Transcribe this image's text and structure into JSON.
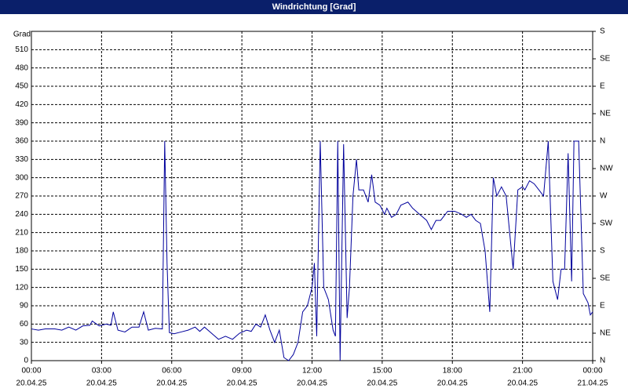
{
  "chart_data": {
    "type": "line",
    "title": "Windrichtung [Grad]",
    "y_label": "Grad",
    "x": [
      0,
      0.3,
      0.6,
      1.0,
      1.3,
      1.6,
      1.9,
      2.2,
      2.5,
      2.6,
      2.9,
      3.2,
      3.4,
      3.5,
      3.7,
      4.0,
      4.3,
      4.6,
      4.8,
      5.0,
      5.3,
      5.6,
      5.7,
      5.8,
      5.9,
      6.1,
      6.4,
      6.7,
      7.0,
      7.2,
      7.4,
      7.7,
      8.0,
      8.3,
      8.6,
      8.9,
      9.2,
      9.4,
      9.6,
      9.8,
      10.0,
      10.2,
      10.4,
      10.6,
      10.8,
      11.0,
      11.2,
      11.4,
      11.6,
      11.8,
      12.0,
      12.1,
      12.2,
      12.35,
      12.5,
      12.7,
      12.9,
      13.0,
      13.1,
      13.2,
      13.35,
      13.5,
      13.6,
      13.75,
      13.9,
      14.0,
      14.2,
      14.4,
      14.55,
      14.7,
      14.9,
      15.1,
      15.2,
      15.4,
      15.6,
      15.8,
      16.1,
      16.3,
      16.6,
      16.9,
      17.1,
      17.3,
      17.5,
      17.8,
      18.1,
      18.4,
      18.6,
      18.8,
      19.0,
      19.2,
      19.4,
      19.6,
      19.75,
      19.9,
      20.1,
      20.3,
      20.6,
      20.8,
      21.0,
      21.1,
      21.3,
      21.5,
      21.7,
      21.9,
      22.1,
      22.3,
      22.5,
      22.65,
      22.8,
      22.95,
      23.1,
      23.2,
      23.4,
      23.6,
      23.8,
      23.9,
      24.0
    ],
    "series": [
      {
        "name": "Windrichtung",
        "color": "#00009c",
        "values": [
          52,
          50,
          52,
          52,
          50,
          55,
          50,
          57,
          58,
          65,
          57,
          60,
          58,
          80,
          50,
          47,
          55,
          55,
          80,
          50,
          53,
          52,
          360,
          160,
          46,
          44,
          47,
          50,
          55,
          48,
          55,
          45,
          35,
          40,
          35,
          45,
          50,
          48,
          60,
          55,
          75,
          50,
          30,
          50,
          5,
          0,
          10,
          30,
          80,
          90,
          120,
          160,
          40,
          360,
          120,
          100,
          50,
          40,
          360,
          0,
          355,
          70,
          120,
          270,
          330,
          280,
          280,
          260,
          305,
          260,
          255,
          240,
          250,
          235,
          240,
          255,
          260,
          250,
          240,
          230,
          215,
          230,
          230,
          245,
          245,
          240,
          235,
          240,
          230,
          225,
          180,
          80,
          300,
          270,
          285,
          270,
          150,
          280,
          285,
          280,
          295,
          290,
          280,
          270,
          360,
          130,
          100,
          150,
          150,
          340,
          130,
          360,
          360,
          110,
          95,
          75,
          80
        ]
      }
    ],
    "xlim": [
      0,
      24
    ],
    "xticks": [
      {
        "value": 0,
        "label": "00:00",
        "date": "20.04.25"
      },
      {
        "value": 3,
        "label": "03:00",
        "date": "20.04.25"
      },
      {
        "value": 6,
        "label": "06:00",
        "date": "20.04.25"
      },
      {
        "value": 9,
        "label": "09:00",
        "date": "20.04.25"
      },
      {
        "value": 12,
        "label": "12:00",
        "date": "20.04.25"
      },
      {
        "value": 15,
        "label": "15:00",
        "date": "20.04.25"
      },
      {
        "value": 18,
        "label": "18:00",
        "date": "20.04.25"
      },
      {
        "value": 21,
        "label": "21:00",
        "date": "20.04.25"
      },
      {
        "value": 24,
        "label": "00:00",
        "date": "21.04.25"
      }
    ],
    "ylim": [
      0,
      540
    ],
    "yticks": [
      0,
      30,
      60,
      90,
      120,
      150,
      180,
      210,
      240,
      270,
      300,
      330,
      360,
      390,
      420,
      450,
      480,
      510
    ],
    "y2lim": [
      0,
      540
    ],
    "y2ticks": [
      {
        "value": 0,
        "label": "N"
      },
      {
        "value": 45,
        "label": "NE"
      },
      {
        "value": 90,
        "label": "E"
      },
      {
        "value": 135,
        "label": "SE"
      },
      {
        "value": 180,
        "label": "S"
      },
      {
        "value": 225,
        "label": "SW"
      },
      {
        "value": 270,
        "label": "W"
      },
      {
        "value": 315,
        "label": "NW"
      },
      {
        "value": 360,
        "label": "N"
      },
      {
        "value": 405,
        "label": "NE"
      },
      {
        "value": 450,
        "label": "E"
      },
      {
        "value": 495,
        "label": "SE"
      },
      {
        "value": 540,
        "label": "S"
      }
    ],
    "grid": true
  }
}
